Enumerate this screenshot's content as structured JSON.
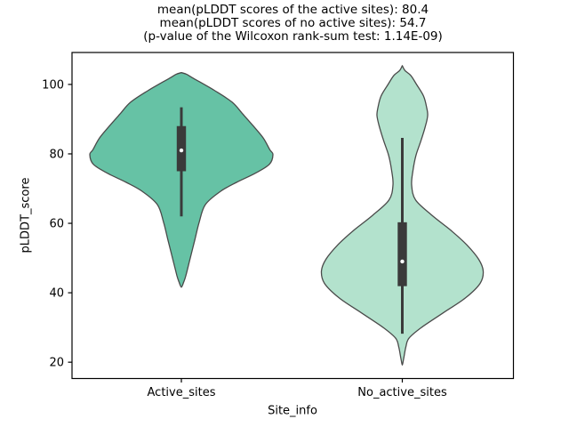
{
  "figure": {
    "background": "#ffffff"
  },
  "chart_data": {
    "type": "violin",
    "title_lines": [
      "mean(pLDDT scores of the active sites): 80.4",
      "mean(pLDDT scores of no active sites): 54.7",
      "(p-value of the Wilcoxon rank-sum test: 1.14E-09)"
    ],
    "xlabel": "Site_info",
    "ylabel": "pLDDT_score",
    "categories": [
      "Active_sites",
      "No_active_sites"
    ],
    "yticks": [
      20,
      40,
      60,
      80,
      100
    ],
    "ylim": [
      15.3,
      109.2
    ],
    "grid": false,
    "legend": null,
    "axis_color": "#000000",
    "edge_color": "#4a4a4a",
    "box_color": "#3a3a3a",
    "median_dot_color": "#ffffff",
    "annotations": {
      "mean_active_sites": 80.4,
      "mean_no_active_sites": 54.7,
      "wilcoxon_p_value": "1.14E-09"
    },
    "series": [
      {
        "name": "Active_sites",
        "fill": "#66c2a5",
        "stats": {
          "whisker_low": 62.0,
          "q1": 75.0,
          "median": 81.0,
          "q3": 88.0,
          "whisker_high": 93.4,
          "kde_min": 41.6,
          "kde_max": 103.4
        },
        "profile": [
          [
            103.4,
            0
          ],
          [
            102.9,
            6
          ],
          [
            101.7,
            14
          ],
          [
            98.3,
            37
          ],
          [
            94.9,
            57
          ],
          [
            91.5,
            69
          ],
          [
            88.0,
            81
          ],
          [
            84.6,
            92
          ],
          [
            81.2,
            99.5
          ],
          [
            79.8,
            103
          ],
          [
            77.0,
            99
          ],
          [
            74.4,
            83
          ],
          [
            71.8,
            62
          ],
          [
            69.2,
            44
          ],
          [
            65.4,
            27
          ],
          [
            60.3,
            20
          ],
          [
            55.1,
            15
          ],
          [
            50.0,
            10
          ],
          [
            44.9,
            5
          ],
          [
            43.0,
            2.5
          ],
          [
            41.6,
            0
          ]
        ]
      },
      {
        "name": "No_active_sites",
        "fill": "#b3e2cd",
        "stats": {
          "whisker_low": 28.2,
          "q1": 41.9,
          "median": 49.0,
          "q3": 60.3,
          "whisker_high": 84.6,
          "kde_min": 19.2,
          "kde_max": 105.4
        },
        "profile": [
          [
            105.4,
            0
          ],
          [
            104.0,
            3
          ],
          [
            102.6,
            9.5
          ],
          [
            100.0,
            16
          ],
          [
            96.6,
            24
          ],
          [
            93.2,
            27.5
          ],
          [
            91.0,
            28.5
          ],
          [
            88.0,
            26
          ],
          [
            83.8,
            21
          ],
          [
            79.5,
            15.3
          ],
          [
            75.2,
            12
          ],
          [
            71.0,
            10.5
          ],
          [
            66.7,
            15
          ],
          [
            62.4,
            33
          ],
          [
            58.1,
            54
          ],
          [
            53.8,
            72.5
          ],
          [
            49.6,
            86
          ],
          [
            46.2,
            91
          ],
          [
            42.7,
            87.5
          ],
          [
            38.5,
            71
          ],
          [
            34.2,
            46
          ],
          [
            29.9,
            21
          ],
          [
            26.9,
            7.5
          ],
          [
            24.4,
            4
          ],
          [
            21.0,
            1.5
          ],
          [
            19.2,
            0
          ]
        ]
      }
    ]
  }
}
